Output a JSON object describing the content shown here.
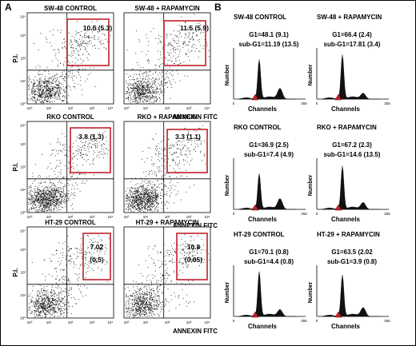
{
  "figure": {
    "panel_a_letter": "A",
    "panel_b_letter": "B",
    "panel_a": {
      "y_axis_label": "P.I.",
      "x_axis_label": "ANNEXIN FITC",
      "tick_labels": [
        "10⁰",
        "10¹",
        "10²",
        "10³",
        "10⁴"
      ],
      "rows": [
        {
          "plots": [
            {
              "title": "SW-48 CONTROL",
              "value_line1": "10.5 (5.3)",
              "value_line2": ""
            },
            {
              "title": "SW-48 + RAPAMYCIN",
              "value_line1": "11.5 (5.9)",
              "value_line2": ""
            }
          ]
        },
        {
          "plots": [
            {
              "title": "RKO CONTROL",
              "value_line1": "3.8 (1.3)",
              "value_line2": ""
            },
            {
              "title": "RKO + RAPAMYCIN",
              "value_line1": "3.3 (1.1)",
              "value_line2": ""
            }
          ]
        },
        {
          "plots": [
            {
              "title": "HT-29 CONTROL",
              "value_line1": "7.02",
              "value_line2": "(0.5)"
            },
            {
              "title": "HT-29 + RAPAMYCIN",
              "value_line1": "10.8",
              "value_line2": "(0.05)"
            }
          ]
        }
      ]
    },
    "panel_b": {
      "y_axis_label": "Number",
      "x_axis_label": "Channels",
      "x_tick_left": "0",
      "x_tick_right": "255",
      "rows": [
        {
          "plots": [
            {
              "title": "SW-48 CONTROL",
              "g1": "G1=48.1 (9.1)",
              "subg1": "sub-G1=11.19 (13.5)"
            },
            {
              "title": "SW-48 + RAPAMYCIN",
              "g1": "G1=66.4 (2.4)",
              "subg1": "sub-G1=17.81 (3.4)"
            }
          ]
        },
        {
          "plots": [
            {
              "title": "RKO CONTROL",
              "g1": "G1=36.9 (2.5)",
              "subg1": "sub-G1=7.4 (4.9)"
            },
            {
              "title": "RKO + RAPAMYCIN",
              "g1": "G1=67.2 (2.3)",
              "subg1": "sub-G1=14.6 (13.5)"
            }
          ]
        },
        {
          "plots": [
            {
              "title": "HT-29 CONTROL",
              "g1": "G1=70.1 (0.8)",
              "subg1": "sub-G1=4.4 (0.8)"
            },
            {
              "title": "HT-29 + RAPAMYCIN",
              "g1": "G1=63.5 (2.02",
              "subg1": "sub-G1=3.9 (0.8)"
            }
          ]
        }
      ]
    }
  },
  "colors": {
    "gate": "#c0202c",
    "marker": "#c0202c",
    "dots": "#111111"
  }
}
